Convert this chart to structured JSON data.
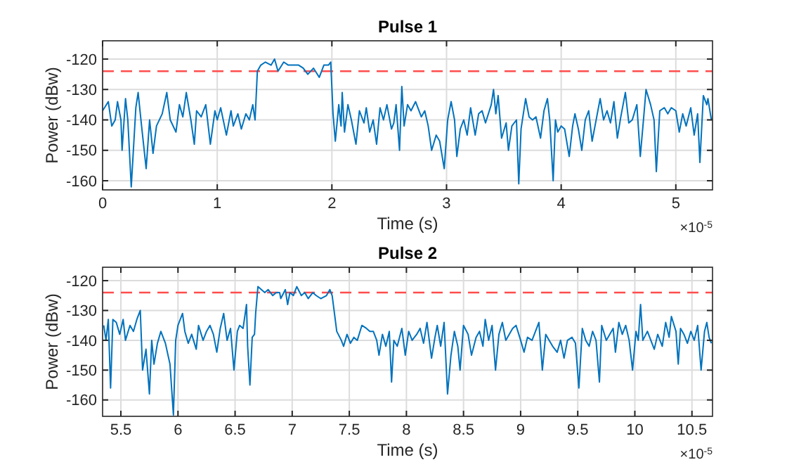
{
  "chart_data": [
    {
      "type": "line",
      "title": "Pulse 1",
      "xlabel": "Time (s)",
      "ylabel": "Power (dBw)",
      "annotations": [
        "×10$^{-5}$"
      ],
      "grid": true,
      "xlim": [
        0,
        5.32
      ],
      "ylim": [
        -163,
        -114
      ],
      "xticks": [
        0,
        1,
        2,
        3,
        4,
        5
      ],
      "yticks": [
        -160,
        -150,
        -140,
        -130,
        -120
      ],
      "ref_lines": [
        {
          "axis": "y",
          "value": -124,
          "color": "#ff4d4d",
          "line_style": "dashed"
        }
      ],
      "x": [
        0,
        0.05,
        0.08,
        0.11,
        0.13,
        0.16,
        0.17,
        0.2,
        0.22,
        0.25,
        0.29,
        0.31,
        0.34,
        0.38,
        0.41,
        0.44,
        0.47,
        0.52,
        0.56,
        0.59,
        0.64,
        0.67,
        0.7,
        0.73,
        0.77,
        0.8,
        0.82,
        0.86,
        0.9,
        0.94,
        0.98,
        1.0,
        1.03,
        1.08,
        1.12,
        1.14,
        1.18,
        1.21,
        1.25,
        1.28,
        1.31,
        1.33,
        1.35,
        1.38,
        1.42,
        1.47,
        1.5,
        1.53,
        1.58,
        1.62,
        1.66,
        1.71,
        1.75,
        1.79,
        1.84,
        1.89,
        1.93,
        1.97,
        1.99,
        2.01,
        2.03,
        2.06,
        2.08,
        2.09,
        2.11,
        2.14,
        2.17,
        2.21,
        2.24,
        2.28,
        2.3,
        2.33,
        2.36,
        2.39,
        2.42,
        2.45,
        2.48,
        2.52,
        2.54,
        2.56,
        2.59,
        2.61,
        2.63,
        2.66,
        2.69,
        2.73,
        2.78,
        2.81,
        2.84,
        2.87,
        2.91,
        2.94,
        2.98,
        3.01,
        3.04,
        3.07,
        3.09,
        3.12,
        3.15,
        3.18,
        3.21,
        3.25,
        3.28,
        3.31,
        3.34,
        3.39,
        3.41,
        3.43,
        3.45,
        3.48,
        3.52,
        3.54,
        3.57,
        3.61,
        3.63,
        3.65,
        3.69,
        3.72,
        3.75,
        3.78,
        3.82,
        3.85,
        3.88,
        3.9,
        3.93,
        3.95,
        3.97,
        4.0,
        4.03,
        4.07,
        4.1,
        4.12,
        4.15,
        4.18,
        4.21,
        4.24,
        4.27,
        4.31,
        4.34,
        4.37,
        4.4,
        4.43,
        4.46,
        4.49,
        4.52,
        4.56,
        4.59,
        4.62,
        4.66,
        4.69,
        4.72,
        4.74,
        4.78,
        4.81,
        4.83,
        4.86,
        4.9,
        4.93,
        4.96,
        5.0,
        5.03,
        5.06,
        5.09,
        5.13,
        5.16,
        5.19,
        5.21,
        5.24,
        5.27,
        5.28,
        5.31
      ],
      "series": [
        {
          "color": "#0072bd",
          "values": [
            -137,
            -134,
            -142,
            -140,
            -134,
            -140,
            -150,
            -133,
            -140,
            -162,
            -136,
            -131,
            -142,
            -156,
            -140,
            -151,
            -142,
            -138,
            -131,
            -140,
            -144,
            -135,
            -139,
            -131,
            -140,
            -148,
            -137,
            -139,
            -135,
            -148,
            -137,
            -140,
            -136,
            -145,
            -137,
            -142,
            -138,
            -143,
            -138,
            -140,
            -135,
            -140,
            -124,
            -122,
            -121,
            -122,
            -120,
            -124,
            -121,
            -122,
            -122,
            -122,
            -123,
            -125,
            -123,
            -126,
            -122,
            -122,
            -121,
            -138,
            -147,
            -135,
            -142,
            -131,
            -144,
            -135,
            -140,
            -148,
            -137,
            -141,
            -136,
            -144,
            -140,
            -148,
            -136,
            -140,
            -135,
            -143,
            -141,
            -135,
            -150,
            -129,
            -142,
            -135,
            -137,
            -134,
            -139,
            -137,
            -142,
            -150,
            -145,
            -147,
            -156,
            -140,
            -134,
            -140,
            -152,
            -143,
            -140,
            -145,
            -136,
            -145,
            -138,
            -137,
            -141,
            -135,
            -130,
            -138,
            -132,
            -146,
            -141,
            -150,
            -142,
            -140,
            -161,
            -143,
            -133,
            -139,
            -140,
            -139,
            -146,
            -137,
            -133,
            -140,
            -160,
            -140,
            -144,
            -142,
            -143,
            -152,
            -142,
            -138,
            -143,
            -150,
            -140,
            -137,
            -147,
            -139,
            -133,
            -140,
            -137,
            -141,
            -134,
            -146,
            -139,
            -131,
            -141,
            -140,
            -135,
            -152,
            -139,
            -130,
            -135,
            -140,
            -157,
            -137,
            -136,
            -138,
            -136,
            -137,
            -144,
            -138,
            -142,
            -136,
            -145,
            -138,
            -154,
            -132,
            -135,
            -133,
            -140
          ]
        }
      ]
    },
    {
      "type": "line",
      "title": "Pulse 2",
      "xlabel": "Time (s)",
      "ylabel": "Power (dBw)",
      "annotations": [
        "×10$^{-5}$"
      ],
      "grid": true,
      "xlim": [
        5.34,
        10.68
      ],
      "ylim": [
        -165.5,
        -115.5
      ],
      "xticks": [
        5.5,
        6,
        6.5,
        7,
        7.5,
        8,
        8.5,
        9,
        9.5,
        10,
        10.5
      ],
      "yticks": [
        -160,
        -150,
        -140,
        -130,
        -120
      ],
      "ref_lines": [
        {
          "axis": "y",
          "value": -124,
          "color": "#ff4d4d",
          "line_style": "dashed"
        }
      ],
      "x": [
        5.35,
        5.37,
        5.39,
        5.41,
        5.43,
        5.46,
        5.49,
        5.52,
        5.54,
        5.58,
        5.61,
        5.64,
        5.67,
        5.69,
        5.72,
        5.75,
        5.77,
        5.79,
        5.82,
        5.85,
        5.89,
        5.93,
        5.96,
        5.98,
        6.0,
        6.04,
        6.06,
        6.09,
        6.12,
        6.16,
        6.18,
        6.22,
        6.25,
        6.28,
        6.31,
        6.34,
        6.37,
        6.4,
        6.43,
        6.46,
        6.49,
        6.52,
        6.54,
        6.57,
        6.6,
        6.61,
        6.63,
        6.65,
        6.67,
        6.68,
        6.7,
        6.73,
        6.76,
        6.79,
        6.83,
        6.86,
        6.89,
        6.9,
        6.94,
        6.96,
        6.98,
        7.01,
        7.04,
        7.08,
        7.11,
        7.14,
        7.18,
        7.21,
        7.25,
        7.3,
        7.33,
        7.35,
        7.37,
        7.39,
        7.43,
        7.45,
        7.48,
        7.51,
        7.54,
        7.57,
        7.61,
        7.65,
        7.68,
        7.71,
        7.74,
        7.76,
        7.79,
        7.82,
        7.85,
        7.87,
        7.89,
        7.92,
        7.96,
        7.99,
        8.02,
        8.05,
        8.09,
        8.12,
        8.15,
        8.18,
        8.22,
        8.25,
        8.27,
        8.3,
        8.33,
        8.36,
        8.39,
        8.42,
        8.45,
        8.47,
        8.5,
        8.54,
        8.57,
        8.61,
        8.64,
        8.67,
        8.69,
        8.72,
        8.75,
        8.78,
        8.81,
        8.84,
        8.87,
        8.9,
        8.93,
        8.96,
        9.0,
        9.03,
        9.06,
        9.1,
        9.13,
        9.16,
        9.19,
        9.22,
        9.25,
        9.28,
        9.32,
        9.35,
        9.38,
        9.41,
        9.45,
        9.48,
        9.51,
        9.54,
        9.57,
        9.6,
        9.63,
        9.66,
        9.69,
        9.71,
        9.75,
        9.78,
        9.81,
        9.83,
        9.86,
        9.89,
        9.92,
        9.95,
        9.98,
        10.01,
        10.03,
        10.05,
        10.07,
        10.11,
        10.14,
        10.17,
        10.2,
        10.24,
        10.27,
        10.3,
        10.32,
        10.36,
        10.38,
        10.4,
        10.43,
        10.46,
        10.49,
        10.52,
        10.55,
        10.58,
        10.61,
        10.63,
        10.65,
        10.67
      ],
      "series": [
        {
          "color": "#0072bd",
          "values": [
            -135,
            -140,
            -133,
            -156,
            -133,
            -134,
            -138,
            -133,
            -140,
            -135,
            -137,
            -133,
            -130,
            -150,
            -143,
            -158,
            -140,
            -148,
            -141,
            -137,
            -141,
            -148,
            -165,
            -140,
            -135,
            -131,
            -137,
            -141,
            -138,
            -143,
            -135,
            -140,
            -137,
            -135,
            -138,
            -144,
            -136,
            -131,
            -140,
            -136,
            -150,
            -137,
            -135,
            -136,
            -128,
            -142,
            -155,
            -139,
            -138,
            -131,
            -122,
            -123,
            -124,
            -123,
            -125,
            -124,
            -124,
            -126,
            -123,
            -128,
            -124,
            -125,
            -122,
            -125,
            -124,
            -126,
            -124,
            -125,
            -126,
            -125,
            -123,
            -125,
            -131,
            -137,
            -140,
            -142,
            -138,
            -141,
            -139,
            -140,
            -135,
            -136,
            -137,
            -137,
            -140,
            -145,
            -138,
            -142,
            -137,
            -154,
            -140,
            -142,
            -136,
            -145,
            -137,
            -140,
            -138,
            -136,
            -141,
            -134,
            -146,
            -139,
            -135,
            -142,
            -134,
            -158,
            -145,
            -137,
            -142,
            -150,
            -135,
            -138,
            -145,
            -139,
            -137,
            -142,
            -133,
            -140,
            -135,
            -150,
            -138,
            -134,
            -140,
            -138,
            -136,
            -135,
            -140,
            -144,
            -139,
            -140,
            -137,
            -134,
            -150,
            -138,
            -140,
            -142,
            -144,
            -140,
            -146,
            -140,
            -139,
            -141,
            -156,
            -136,
            -140,
            -142,
            -137,
            -140,
            -154,
            -135,
            -140,
            -138,
            -136,
            -144,
            -134,
            -138,
            -135,
            -140,
            -150,
            -137,
            -140,
            -128,
            -140,
            -137,
            -140,
            -143,
            -138,
            -142,
            -134,
            -139,
            -132,
            -137,
            -148,
            -136,
            -138,
            -141,
            -137,
            -140,
            -135,
            -150,
            -137,
            -134,
            -139,
            -141
          ]
        }
      ]
    }
  ]
}
